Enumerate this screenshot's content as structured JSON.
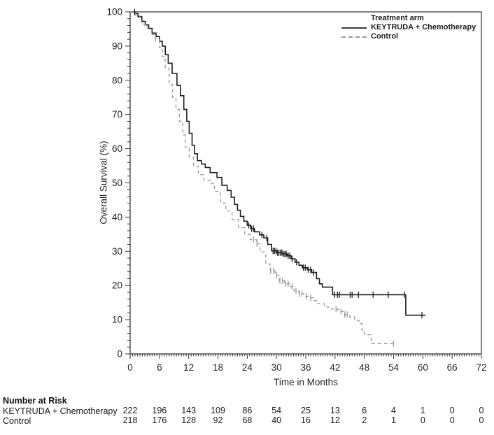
{
  "chart_data": {
    "type": "line",
    "subtype": "kaplan-meier-step",
    "title": "",
    "xlabel": "Time in Months",
    "ylabel": "Overall Survival (%)",
    "xlim": [
      0,
      72
    ],
    "ylim": [
      0,
      100
    ],
    "x_major_tick_step": 6,
    "x_minor_tick_step": 0.5,
    "y_major_tick_step": 10,
    "y_minor_tick_step": 2,
    "grid": "off",
    "frame": "full-box",
    "legend": {
      "title": "Treatment arm",
      "position": "top-right",
      "items": [
        {
          "label": "KEYTRUDA + Chemotherapy",
          "line_style": "solid",
          "color": "#2b2b2b"
        },
        {
          "label": "Control",
          "line_style": "dashed",
          "color": "#9a9a9a"
        }
      ]
    },
    "series": [
      {
        "name": "KEYTRUDA + Chemotherapy",
        "line_style": "solid",
        "color": "#1f1f1f",
        "step_points": [
          [
            0,
            100
          ],
          [
            1,
            99.5
          ],
          [
            1.6,
            98.6
          ],
          [
            2.4,
            97.2
          ],
          [
            3.1,
            96.2
          ],
          [
            3.8,
            95.2
          ],
          [
            4.5,
            93.8
          ],
          [
            5.3,
            92.8
          ],
          [
            6,
            91.4
          ],
          [
            6.6,
            90
          ],
          [
            7.2,
            87.5
          ],
          [
            7.8,
            85
          ],
          [
            8.6,
            82
          ],
          [
            9.6,
            78.5
          ],
          [
            10.3,
            75.5
          ],
          [
            11,
            71.5
          ],
          [
            11.6,
            68
          ],
          [
            12.1,
            64.5
          ],
          [
            12.7,
            61
          ],
          [
            13.2,
            58.5
          ],
          [
            13.8,
            56.5
          ],
          [
            14.6,
            55.5
          ],
          [
            15.4,
            54.5
          ],
          [
            16.4,
            53
          ],
          [
            17.8,
            51.6
          ],
          [
            18.8,
            49.3
          ],
          [
            19.9,
            47.8
          ],
          [
            20.7,
            45.8
          ],
          [
            21.4,
            43.7
          ],
          [
            22,
            42
          ],
          [
            22.6,
            40.2
          ],
          [
            23.3,
            38.8
          ],
          [
            24,
            37.6
          ],
          [
            24.7,
            36.6
          ],
          [
            25.5,
            35.7
          ],
          [
            26.5,
            34.8
          ],
          [
            27.4,
            33.9
          ],
          [
            28.2,
            32
          ],
          [
            29,
            30.1
          ],
          [
            30,
            29.6
          ],
          [
            31.2,
            29.2
          ],
          [
            32.2,
            28.7
          ],
          [
            33,
            27.8
          ],
          [
            33.8,
            26.8
          ],
          [
            34.6,
            25.9
          ],
          [
            35.3,
            25.2
          ],
          [
            36.3,
            24.6
          ],
          [
            37.2,
            23.8
          ],
          [
            38.2,
            22
          ],
          [
            38.8,
            20.5
          ],
          [
            39.4,
            19.5
          ],
          [
            41.5,
            17.3
          ],
          [
            56.5,
            11.3
          ],
          [
            60.5,
            11.3
          ]
        ],
        "censor_marks": [
          [
            0.9,
            100
          ],
          [
            24.3,
            37.6
          ],
          [
            24.9,
            36.6
          ],
          [
            25.3,
            36.6
          ],
          [
            27,
            34.8
          ],
          [
            28,
            33.9
          ],
          [
            29.3,
            30.1
          ],
          [
            29.6,
            30.1
          ],
          [
            29.9,
            30.1
          ],
          [
            30.2,
            29.6
          ],
          [
            30.5,
            29.6
          ],
          [
            30.8,
            29.6
          ],
          [
            31.1,
            29.6
          ],
          [
            31.4,
            29.2
          ],
          [
            31.7,
            29.2
          ],
          [
            32,
            29.2
          ],
          [
            32.4,
            28.7
          ],
          [
            32.7,
            28.7
          ],
          [
            33.2,
            27.8
          ],
          [
            34.1,
            26.8
          ],
          [
            35.5,
            25.2
          ],
          [
            35.9,
            25.2
          ],
          [
            36.5,
            24.6
          ],
          [
            37,
            24.6
          ],
          [
            37.6,
            23.8
          ],
          [
            41.9,
            17.3
          ],
          [
            42.5,
            17.3
          ],
          [
            42.9,
            17.3
          ],
          [
            45.1,
            17.3
          ],
          [
            45.5,
            17.3
          ],
          [
            46.8,
            17.3
          ],
          [
            49.8,
            17.3
          ],
          [
            52.9,
            17.3
          ],
          [
            56.2,
            17.3
          ],
          [
            59.8,
            11.3
          ]
        ]
      },
      {
        "name": "Control",
        "line_style": "dashed",
        "color": "#9a9a9a",
        "step_points": [
          [
            0,
            100
          ],
          [
            1.1,
            99
          ],
          [
            2,
            97.5
          ],
          [
            2.8,
            96.3
          ],
          [
            3.6,
            94.8
          ],
          [
            4.4,
            93.4
          ],
          [
            5.2,
            92.2
          ],
          [
            6,
            89.5
          ],
          [
            6.6,
            87
          ],
          [
            7.2,
            83.6
          ],
          [
            8,
            78.8
          ],
          [
            8.7,
            75
          ],
          [
            9.4,
            71.5
          ],
          [
            10.1,
            68
          ],
          [
            10.8,
            64
          ],
          [
            11.3,
            60.4
          ],
          [
            12.1,
            57.5
          ],
          [
            13,
            54.8
          ],
          [
            14,
            52.4
          ],
          [
            15.1,
            50.8
          ],
          [
            16.4,
            49.9
          ],
          [
            17.3,
            47.5
          ],
          [
            18.5,
            44.1
          ],
          [
            19.6,
            41.8
          ],
          [
            20.9,
            39.3
          ],
          [
            22.2,
            36.9
          ],
          [
            23.5,
            34.9
          ],
          [
            24.6,
            33.4
          ],
          [
            25.9,
            32.2
          ],
          [
            26.6,
            29.8
          ],
          [
            27.8,
            26.3
          ],
          [
            28.7,
            24.3
          ],
          [
            29.7,
            23
          ],
          [
            30.5,
            21.4
          ],
          [
            31.6,
            20.5
          ],
          [
            32.6,
            19.7
          ],
          [
            33.6,
            18.4
          ],
          [
            34.6,
            17.6
          ],
          [
            35.6,
            16.8
          ],
          [
            36.6,
            16.4
          ],
          [
            37.7,
            15.6
          ],
          [
            38.5,
            14.7
          ],
          [
            39.8,
            13.7
          ],
          [
            41.3,
            13.1
          ],
          [
            42.6,
            12.4
          ],
          [
            43.7,
            11.5
          ],
          [
            45,
            10.8
          ],
          [
            46,
            9.8
          ],
          [
            46.9,
            8.9
          ],
          [
            47.5,
            7
          ],
          [
            48,
            5.6
          ],
          [
            49.4,
            3
          ],
          [
            54.2,
            3
          ]
        ],
        "censor_marks": [
          [
            5.2,
            92.2
          ],
          [
            25.3,
            33.4
          ],
          [
            26,
            32.2
          ],
          [
            28.8,
            24.3
          ],
          [
            29.4,
            24.3
          ],
          [
            30,
            23
          ],
          [
            30.7,
            21.4
          ],
          [
            31.2,
            21.4
          ],
          [
            31.8,
            20.5
          ],
          [
            32.4,
            20.5
          ],
          [
            33.2,
            19.7
          ],
          [
            34,
            18.4
          ],
          [
            34.7,
            17.6
          ],
          [
            35.2,
            17.6
          ],
          [
            36.2,
            16.8
          ],
          [
            37,
            16.4
          ],
          [
            42.2,
            13.1
          ],
          [
            43.2,
            12.4
          ],
          [
            44,
            11.5
          ],
          [
            44.5,
            11.5
          ],
          [
            54,
            3
          ]
        ]
      }
    ],
    "x_tick_labels": [
      "0",
      "6",
      "12",
      "18",
      "24",
      "30",
      "36",
      "42",
      "48",
      "54",
      "60",
      "66",
      "72"
    ],
    "y_tick_labels": [
      "0",
      "10",
      "20",
      "30",
      "40",
      "50",
      "60",
      "70",
      "80",
      "90",
      "100"
    ],
    "number_at_risk": {
      "header": "Number at Risk",
      "times": [
        0,
        6,
        12,
        18,
        24,
        30,
        36,
        42,
        48,
        54,
        60,
        66,
        72
      ],
      "rows": [
        {
          "label": "KEYTRUDA + Chemotherapy",
          "counts": [
            222,
            196,
            143,
            109,
            86,
            54,
            25,
            13,
            6,
            4,
            1,
            0,
            0
          ]
        },
        {
          "label": "Control",
          "counts": [
            218,
            176,
            128,
            92,
            68,
            40,
            16,
            12,
            2,
            1,
            0,
            0,
            0
          ]
        }
      ]
    }
  }
}
